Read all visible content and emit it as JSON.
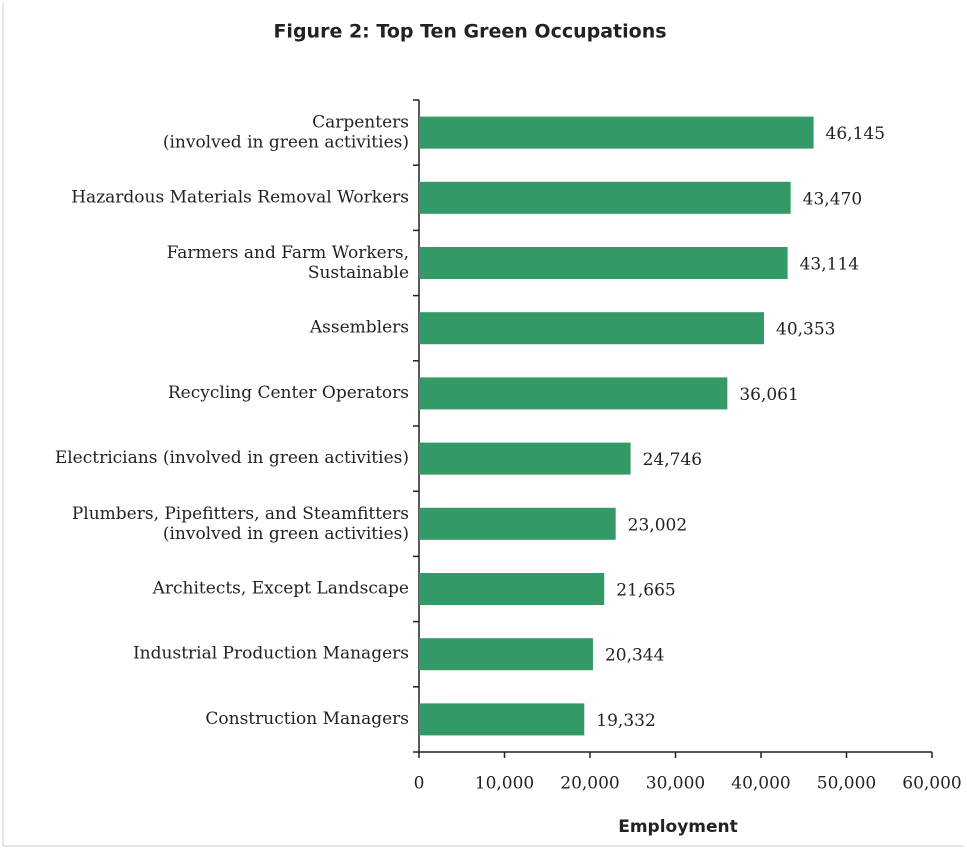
{
  "chart_data": {
    "type": "barh",
    "title": "Figure 2: Top Ten Green Occupations",
    "xlabel": "Employment",
    "categories": [
      "Carpenters\n(involved in green activities)",
      "Hazardous Materials Removal Workers",
      "Farmers and Farm Workers,\nSustainable",
      "Assemblers",
      "Recycling Center Operators",
      "Electricians (involved in green activities)",
      "Plumbers, Pipefitters, and Steamfitters\n(involved in green activities)",
      "Architects, Except Landscape",
      "Industrial Production Managers",
      "Construction Managers"
    ],
    "values": [
      46145,
      43470,
      43114,
      40353,
      36061,
      24746,
      23002,
      21665,
      20344,
      19332
    ],
    "value_labels": [
      "46,145",
      "43,470",
      "43,114",
      "40,353",
      "36,061",
      "24,746",
      "23,002",
      "21,665",
      "20,344",
      "19,332"
    ],
    "color": "#339966",
    "xlim": [
      0,
      60000
    ],
    "xticks": [
      0,
      {
        "value": 10000,
        "label": "10,000"
      },
      {
        "value": 20000,
        "label": "20,000"
      },
      {
        "value": 30000,
        "label": "30,000"
      },
      {
        "value": 40000,
        "label": "40,000"
      },
      {
        "value": 50000,
        "label": "50,000"
      },
      {
        "value": 60000,
        "label": "60,000"
      }
    ]
  }
}
